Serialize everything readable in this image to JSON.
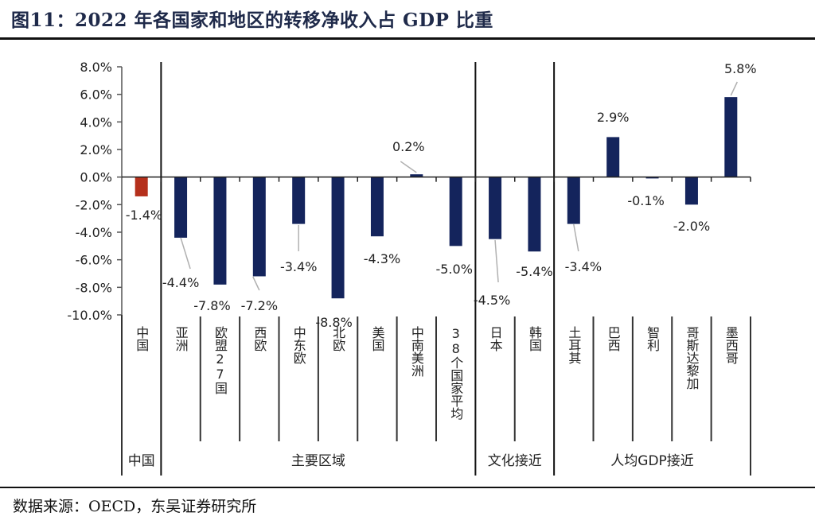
{
  "header": {
    "title": "图11：2022 年各国家和地区的转移净收入占 GDP 比重"
  },
  "footer": {
    "source": "数据来源：OECD，东吴证券研究所"
  },
  "chart_data": {
    "type": "bar",
    "title": "图11：2022 年各国家和地区的转移净收入占 GDP 比重",
    "xlabel": "",
    "ylabel": "",
    "ylim": [
      -10.0,
      8.0
    ],
    "yticks": [
      8.0,
      6.0,
      4.0,
      2.0,
      0.0,
      -2.0,
      -4.0,
      -6.0,
      -8.0,
      -10.0
    ],
    "ytick_labels": [
      "8.0%",
      "6.0%",
      "4.0%",
      "2.0%",
      "0.0%",
      "-2.0%",
      "-4.0%",
      "-6.0%",
      "-8.0%",
      "-10.0%"
    ],
    "grid": false,
    "legend": "none",
    "colors": {
      "highlight": "#b5301c",
      "default": "#14245c"
    },
    "categories": [
      "中国",
      "亚洲",
      "欧盟27国",
      "西欧",
      "中东欧",
      "北欧",
      "美国",
      "中南美洲",
      "38个国家平均",
      "日本",
      "韩国",
      "土耳其",
      "巴西",
      "智利",
      "哥斯达黎加",
      "墨西哥"
    ],
    "values": [
      -1.4,
      -4.4,
      -7.8,
      -7.2,
      -3.4,
      -8.8,
      -4.3,
      0.2,
      -5.0,
      -4.5,
      -5.4,
      -3.4,
      2.9,
      -0.1,
      -2.0,
      5.8
    ],
    "data_labels": [
      "-1.4%",
      "-4.4%",
      "-7.8%",
      "-7.2%",
      "-3.4%",
      "-8.8%",
      "-4.3%",
      "0.2%",
      "-5.0%",
      "-4.5%",
      "-5.4%",
      "-3.4%",
      "2.9%",
      "-0.1%",
      "-2.0%",
      "5.8%"
    ],
    "highlight_index": 0,
    "groups": [
      {
        "label": "中国",
        "start": 0,
        "count": 1
      },
      {
        "label": "主要区域",
        "start": 1,
        "count": 8
      },
      {
        "label": "文化接近",
        "start": 9,
        "count": 2
      },
      {
        "label": "人均GDP接近",
        "start": 11,
        "count": 5
      }
    ]
  }
}
